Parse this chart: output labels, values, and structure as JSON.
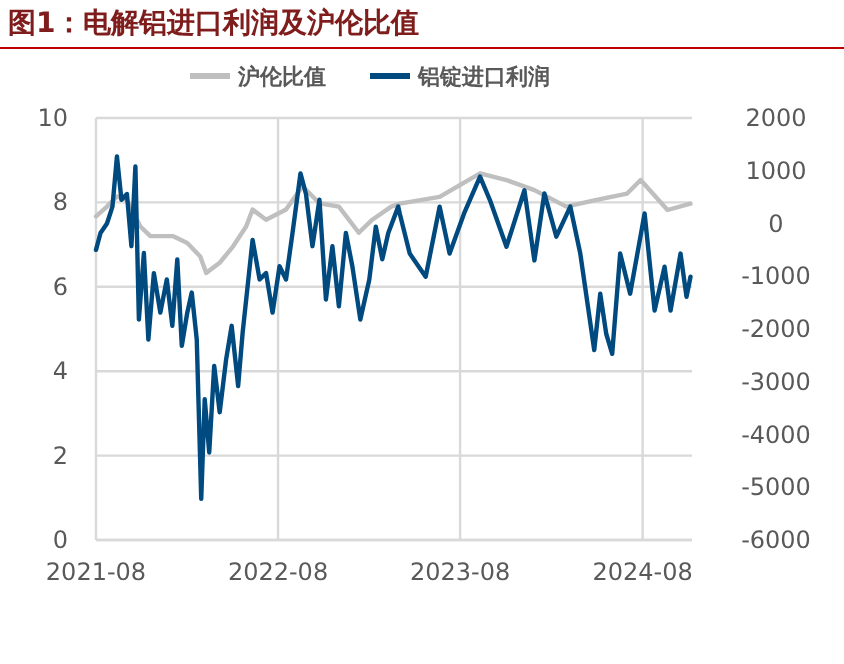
{
  "chart_data": {
    "type": "line",
    "title": "图1：电解铝进口利润及沪伦比值",
    "legend": "top",
    "grid": true,
    "marker": "none",
    "line_style": "solid",
    "xlim": [
      "2021-08-01",
      "2024-11-08"
    ],
    "xticks": [
      {
        "value": "2021-08-01",
        "label": "2021-08"
      },
      {
        "value": "2022-08-01",
        "label": "2022-08"
      },
      {
        "value": "2023-08-01",
        "label": "2023-08"
      },
      {
        "value": "2024-08-01",
        "label": "2024-08"
      }
    ],
    "ylim": [
      0,
      10
    ],
    "yticks": [
      0,
      2,
      4,
      6,
      8,
      10
    ],
    "y2lim": [
      -6000,
      2000
    ],
    "y2ticks": [
      -6000,
      -5000,
      -4000,
      -3000,
      -2000,
      -1000,
      0,
      1000,
      2000
    ],
    "series": [
      {
        "name": "沪伦比值",
        "color": "#bfbfbf",
        "x": [
          "2021-08-01",
          "2021-08-23",
          "2021-09-12",
          "2021-10-02",
          "2021-10-29",
          "2021-11-18",
          "2022-01-03",
          "2022-01-31",
          "2022-02-26",
          "2022-03-10",
          "2022-04-06",
          "2022-05-03",
          "2022-05-29",
          "2022-06-11",
          "2022-07-08",
          "2022-08-17",
          "2022-09-19",
          "2022-10-23",
          "2022-12-01",
          "2023-01-10",
          "2023-02-06",
          "2023-03-16",
          "2023-04-02",
          "2023-06-21",
          "2023-09-10",
          "2023-11-02",
          "2023-12-28",
          "2024-03-01",
          "2024-04-26",
          "2024-07-01",
          "2024-07-28",
          "2024-09-20",
          "2024-11-05"
        ],
        "values": [
          7.67,
          7.9,
          8.14,
          8.06,
          7.43,
          7.2,
          7.2,
          7.04,
          6.72,
          6.33,
          6.57,
          6.96,
          7.43,
          7.83,
          7.59,
          7.83,
          8.38,
          7.98,
          7.9,
          7.28,
          7.59,
          7.9,
          7.97,
          8.13,
          8.69,
          8.53,
          8.29,
          7.9,
          8.05,
          8.21,
          8.53,
          7.82,
          7.97
        ]
      },
      {
        "name": "铝锭进口利润",
        "color": "#004a7f",
        "axis": "y2",
        "x": [
          "2021-08-01",
          "2021-08-10",
          "2021-08-23",
          "2021-09-03",
          "2021-09-12",
          "2021-09-21",
          "2021-10-02",
          "2021-10-11",
          "2021-10-19",
          "2021-10-26",
          "2021-11-05",
          "2021-11-14",
          "2021-11-25",
          "2021-12-08",
          "2021-12-21",
          "2022-01-01",
          "2022-01-11",
          "2022-01-20",
          "2022-01-31",
          "2022-02-09",
          "2022-02-19",
          "2022-02-28",
          "2022-03-07",
          "2022-03-16",
          "2022-03-26",
          "2022-04-06",
          "2022-04-19",
          "2022-04-30",
          "2022-05-13",
          "2022-05-22",
          "2022-06-01",
          "2022-06-11",
          "2022-06-25",
          "2022-07-08",
          "2022-07-21",
          "2022-08-04",
          "2022-08-17",
          "2022-08-30",
          "2022-09-15",
          "2022-09-26",
          "2022-10-09",
          "2022-10-23",
          "2022-11-05",
          "2022-11-18",
          "2022-12-01",
          "2022-12-15",
          "2022-12-28",
          "2023-01-13",
          "2023-01-31",
          "2023-02-13",
          "2023-02-26",
          "2023-03-10",
          "2023-03-30",
          "2023-04-02",
          "2023-04-22",
          "2023-05-24",
          "2023-06-21",
          "2023-07-11",
          "2023-08-09",
          "2023-09-10",
          "2023-09-30",
          "2023-11-02",
          "2023-12-08",
          "2023-12-28",
          "2024-01-17",
          "2024-02-10",
          "2024-03-09",
          "2024-03-29",
          "2024-04-26",
          "2024-05-08",
          "2024-05-20",
          "2024-06-01",
          "2024-06-17",
          "2024-07-07",
          "2024-08-05",
          "2024-08-25",
          "2024-09-14",
          "2024-09-26",
          "2024-10-16",
          "2024-10-28",
          "2024-11-05"
        ],
        "values": [
          -500,
          -180,
          0,
          320,
          1270,
          450,
          560,
          -430,
          1080,
          -1820,
          -560,
          -2200,
          -940,
          -1690,
          -1060,
          -1940,
          -680,
          -2320,
          -1690,
          -1310,
          -2200,
          -5220,
          -3330,
          -4340,
          -2700,
          -3580,
          -2570,
          -1940,
          -3080,
          -2070,
          -1190,
          -310,
          -1060,
          -940,
          -1690,
          -810,
          -1060,
          -180,
          950,
          560,
          -430,
          450,
          -1440,
          -430,
          -1570,
          -180,
          -810,
          -1820,
          -1060,
          -60,
          -680,
          -180,
          320,
          190,
          -570,
          -1010,
          320,
          -570,
          190,
          890,
          440,
          -440,
          630,
          -700,
          570,
          -250,
          320,
          -570,
          -2400,
          -1330,
          -2090,
          -2470,
          -570,
          -1330,
          190,
          -1650,
          -820,
          -1650,
          -570,
          -1390,
          -1010
        ]
      }
    ]
  }
}
